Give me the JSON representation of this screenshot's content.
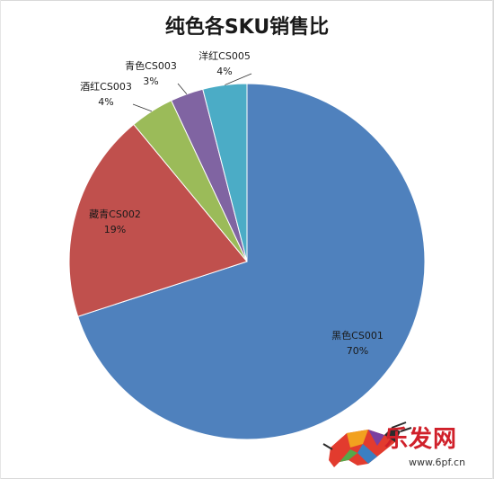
{
  "chart_data": {
    "type": "pie",
    "title": "纯色各SKU销售比",
    "slices": [
      {
        "name": "黑色CS001",
        "value": 70,
        "percent_label": "70%",
        "color": "#4f81bd"
      },
      {
        "name": "藏青CS002",
        "value": 19,
        "percent_label": "19%",
        "color": "#c0504d"
      },
      {
        "name": "酒红CS003",
        "value": 4,
        "percent_label": "4%",
        "color": "#9bbb59"
      },
      {
        "name": "青色CS003",
        "value": 3,
        "percent_label": "3%",
        "color": "#8064a2"
      },
      {
        "name": "洋红CS005",
        "value": 4,
        "percent_label": "4%",
        "color": "#4bacc6"
      }
    ],
    "legend": "none",
    "data_labels": "category-and-percent"
  },
  "watermark": {
    "brand_text": "乐发网",
    "url": "www.6pf.cn",
    "logo": "bull-logo"
  }
}
